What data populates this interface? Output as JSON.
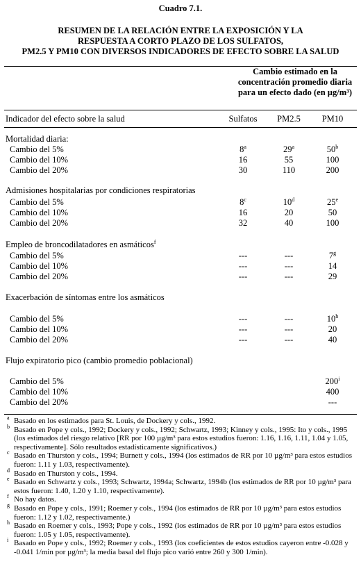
{
  "caption": "Cuadro 7.1.",
  "title": [
    "RESUMEN DE LA RELACIÓN ENTRE LA EXPOSICIÓN Y LA",
    "RESPUESTA A CORTO PLAZO DE LOS SULFATOS,",
    "PM2.5 Y PM10 CON DIVERSOS INDICADORES DE EFECTO SOBRE LA SALUD"
  ],
  "table": {
    "group_header": [
      "Cambio estimado en la",
      "concentración promedio diaria",
      "para un efecto dado (en µg/m³)"
    ],
    "columns": [
      "Indicador del efecto sobre la salud",
      "Sulfatos",
      "PM2.5",
      "PM10"
    ],
    "sections": [
      {
        "title": "Mortalidad diaria:",
        "rows": [
          [
            "Cambio del 5%",
            {
              "text": "8",
              "sup": "a"
            },
            {
              "text": "29",
              "sup": "a"
            },
            {
              "text": "50",
              "sup": "b"
            }
          ],
          [
            "Cambio del 10%",
            "16",
            "55",
            "100"
          ],
          [
            "Cambio del 20%",
            "30",
            "110",
            "200"
          ]
        ]
      },
      {
        "title": "Admisiones hospitalarias por condiciones respiratorias",
        "rows": [
          [
            "Cambio del 5%",
            {
              "text": "8",
              "sup": "c"
            },
            {
              "text": "10",
              "sup": "d"
            },
            {
              "text": "25",
              "sup": "e"
            }
          ],
          [
            "Cambio del 10%",
            "16",
            "20",
            "50"
          ],
          [
            "Cambio del 20%",
            "32",
            "40",
            "100"
          ]
        ]
      },
      {
        "title": "Empleo de broncodilatadores en asmáticos",
        "sup": "f",
        "rows": [
          [
            "Cambio del 5%",
            "---",
            "---",
            {
              "text": "7",
              "sup": "g"
            }
          ],
          [
            "Cambio del 10%",
            "---",
            "---",
            "14"
          ],
          [
            "Cambio del 20%",
            "---",
            "---",
            "29"
          ]
        ]
      },
      {
        "title": "Exacerbación de síntomas entre los asmáticos",
        "rows": [
          [
            "Cambio del 5%",
            "---",
            "---",
            {
              "text": "10",
              "sup": "h"
            }
          ],
          [
            "Cambio del 10%",
            "---",
            "---",
            "20"
          ],
          [
            "Cambio del 20%",
            "---",
            "---",
            "40"
          ]
        ]
      },
      {
        "title": "Flujo expiratorio pico (cambio promedio poblacional)",
        "rows": [
          [
            "Cambio del 5%",
            null,
            null,
            {
              "text": "200",
              "sup": "i"
            }
          ],
          [
            "Cambio del 10%",
            null,
            null,
            "400"
          ],
          [
            "Cambio del 20%",
            null,
            null,
            "---"
          ]
        ]
      }
    ]
  },
  "footnotes": [
    {
      "mark": "a",
      "text": "Basado en los estimados para St. Louis, de Dockery y cols., 1992."
    },
    {
      "mark": "b",
      "text": "Basado en Pope y cols., 1992; Dockery y cols., 1992; Schwartz, 1993; Kinney y cols., 1995: Ito y cols., 1995 (los estimados del riesgo relativo [RR por 100 µg/m³ para estos estudios fueron: 1.16, 1.16, 1.11, 1.04 y 1.05, respectivamente]. Sólo resultados estadísticamente significativos.)"
    },
    {
      "mark": "c",
      "text": "Basado en Thurston y cols., 1994; Burnett y cols., 1994 (los estimados de RR por 10 µg/m³ para estos estudios fueron: 1.11 y 1.03, respectivamente)."
    },
    {
      "mark": "d",
      "text": "Basado en Thurston y cols., 1994."
    },
    {
      "mark": "e",
      "text": "Basado en Schwartz y cols., 1993; Schwartz, 1994a; Schwartz, 1994b (los estimados de RR por 10 µg/m³ para estos fueron: 1.40, 1.20 y 1.10, respectivamente)."
    },
    {
      "mark": "f",
      "text": "No hay datos."
    },
    {
      "mark": "g",
      "text": "Basado en Pope y cols., 1991; Roemer y cols., 1994 (los estimados de RR por 10 µg/m³ para estos estudios fueron: 1.12 y 1.02, respectivamente.)"
    },
    {
      "mark": "h",
      "text": "Basado en Roemer y cols., 1993; Pope y cols., 1992 (los estimados de RR por 10 µg/m³ para estos estudios fueron: 1.05 y 1.05, respectivamente)."
    },
    {
      "mark": "i",
      "text": "Basado en Pope y cols., 1992; Roemer y cols., 1993 (los coeficientes de estos estudios cayeron entre -0.028 y -0.041 1/min por µg/m³; la media basal del flujo pico varió entre 260 y 300 1/min)."
    }
  ]
}
